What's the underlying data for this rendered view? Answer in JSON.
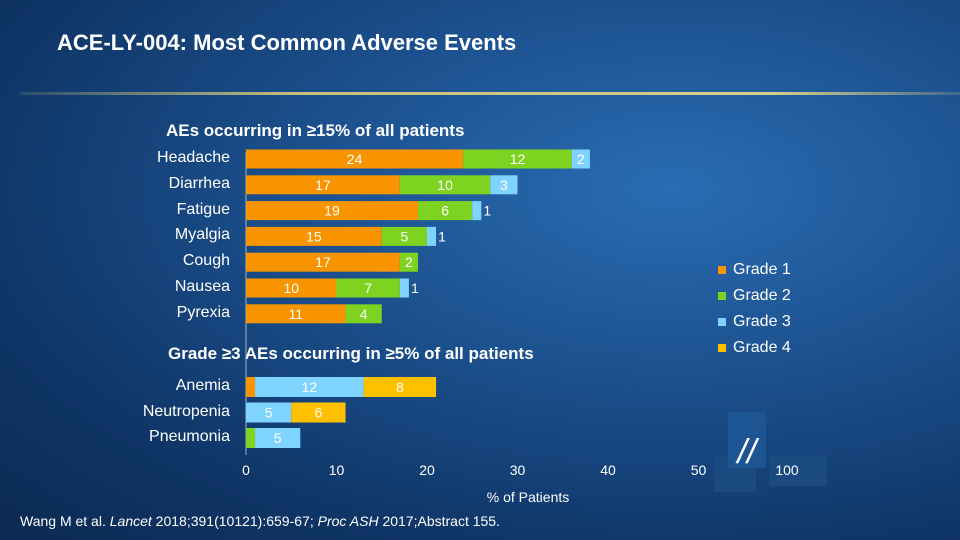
{
  "title": "ACE-LY-004: Most Common Adverse Events",
  "colors": {
    "grade1": "#f79400",
    "grade2": "#7ed321",
    "grade3": "#7fd4ff",
    "grade4": "#ffc000"
  },
  "chart_data": [
    {
      "type": "bar",
      "orientation": "horizontal",
      "stacked": true,
      "title": "AEs occurring in ≥15% of all patients",
      "categories": [
        "Headache",
        "Diarrhea",
        "Fatigue",
        "Myalgia",
        "Cough",
        "Nausea",
        "Pyrexia"
      ],
      "series": [
        {
          "name": "Grade 1",
          "values": [
            24,
            17,
            19,
            15,
            17,
            10,
            11
          ]
        },
        {
          "name": "Grade 2",
          "values": [
            12,
            10,
            6,
            5,
            2,
            7,
            4
          ]
        },
        {
          "name": "Grade 3",
          "values": [
            2,
            3,
            1,
            1,
            0,
            1,
            0
          ]
        },
        {
          "name": "Grade 4",
          "values": [
            0,
            0,
            0,
            0,
            0,
            0,
            0
          ]
        }
      ]
    },
    {
      "type": "bar",
      "orientation": "horizontal",
      "stacked": true,
      "title": "Grade ≥3 AEs occurring in ≥5% of all patients",
      "categories": [
        "Anemia",
        "Neutropenia",
        "Pneumonia"
      ],
      "series": [
        {
          "name": "Grade 1",
          "values": [
            1,
            0,
            0
          ]
        },
        {
          "name": "Grade 2",
          "values": [
            0,
            0,
            1
          ]
        },
        {
          "name": "Grade 3",
          "values": [
            12,
            5,
            5
          ]
        },
        {
          "name": "Grade 4",
          "values": [
            8,
            6,
            0
          ]
        }
      ],
      "labeled_values": [
        [
          {
            "v": "12",
            "series": 2
          },
          {
            "v": "8",
            "series": 3
          }
        ],
        [
          {
            "v": "5",
            "series": 2
          },
          {
            "v": "6",
            "series": 3
          }
        ],
        [
          {
            "v": "1",
            "series": 1
          },
          {
            "v": "5",
            "series": 2
          }
        ]
      ]
    }
  ],
  "x_axis": {
    "label": "% of Patients",
    "ticks": [
      "0",
      "10",
      "20",
      "30",
      "40",
      "50",
      "100"
    ],
    "xlim": [
      0,
      55
    ],
    "break": "//"
  },
  "legend": [
    "Grade 1",
    "Grade 2",
    "Grade 3",
    "Grade 4"
  ],
  "footer": {
    "prefix": "Wang M et al. ",
    "journal": "Lancet",
    "middle": " 2018;391(10121):659-67; ",
    "proc": "Proc ASH",
    "suffix": " 2017;Abstract 155."
  }
}
